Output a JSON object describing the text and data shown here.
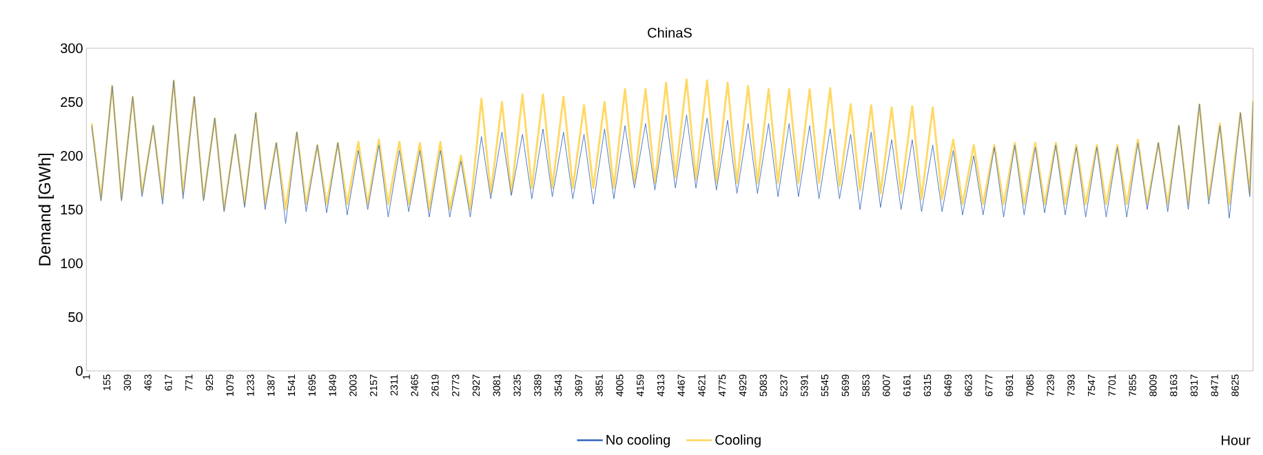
{
  "chart_data": {
    "type": "line",
    "title": "ChinaS",
    "xlabel": "Hour",
    "ylabel": "Demand [GWh]",
    "x": [
      41,
      111,
      195,
      265,
      349,
      419,
      503,
      573,
      657,
      727,
      811,
      881,
      965,
      1035,
      1119,
      1189,
      1273,
      1343,
      1427,
      1497,
      1581,
      1651,
      1735,
      1805,
      1889,
      1959,
      2043,
      2113,
      2197,
      2267,
      2351,
      2421,
      2505,
      2575,
      2659,
      2729,
      2813,
      2883,
      2967,
      3037,
      3121,
      3191,
      3275,
      3345,
      3429,
      3499,
      3583,
      3653,
      3737,
      3807,
      3891,
      3961,
      4045,
      4115,
      4199,
      4269,
      4353,
      4423,
      4507,
      4577,
      4661,
      4731,
      4815,
      4885,
      4969,
      5039,
      5123,
      5193,
      5277,
      5347,
      5431,
      5501,
      5585,
      5655,
      5739,
      5809,
      5893,
      5963,
      6047,
      6117,
      6201,
      6271,
      6355,
      6425,
      6509,
      6579,
      6663,
      6733,
      6817,
      6887,
      6971,
      7041,
      7125,
      7195,
      7279,
      7349,
      7433,
      7503,
      7587,
      7657,
      7741,
      7811,
      7895,
      7965,
      8049,
      8119,
      8203,
      8273,
      8357,
      8427,
      8511,
      8581,
      8665,
      8735,
      8760
    ],
    "series": [
      {
        "name": "No cooling",
        "color": "#4472c4",
        "values": [
          228,
          158,
          265,
          158,
          255,
          162,
          228,
          155,
          270,
          160,
          255,
          158,
          235,
          148,
          220,
          152,
          240,
          150,
          212,
          137,
          222,
          148,
          210,
          147,
          212,
          145,
          205,
          150,
          210,
          143,
          205,
          148,
          205,
          143,
          205,
          143,
          195,
          143,
          218,
          160,
          222,
          163,
          220,
          160,
          225,
          162,
          222,
          160,
          220,
          155,
          225,
          160,
          228,
          170,
          230,
          168,
          238,
          170,
          238,
          170,
          235,
          168,
          233,
          165,
          230,
          165,
          230,
          162,
          230,
          162,
          228,
          160,
          225,
          160,
          220,
          150,
          222,
          152,
          215,
          150,
          215,
          148,
          210,
          148,
          205,
          145,
          200,
          145,
          208,
          143,
          210,
          145,
          208,
          147,
          210,
          145,
          208,
          143,
          208,
          143,
          208,
          143,
          212,
          150,
          212,
          148,
          228,
          150,
          248,
          155,
          228,
          142,
          240,
          162,
          250
        ]
      },
      {
        "name": "Cooling",
        "color": "#ffd966",
        "values": [
          230,
          160,
          265,
          160,
          255,
          165,
          228,
          160,
          270,
          165,
          255,
          160,
          235,
          150,
          220,
          155,
          240,
          155,
          212,
          150,
          222,
          155,
          210,
          155,
          212,
          155,
          213,
          155,
          215,
          155,
          213,
          155,
          212,
          150,
          213,
          150,
          200,
          150,
          253,
          165,
          250,
          165,
          257,
          170,
          257,
          170,
          255,
          170,
          247,
          170,
          250,
          170,
          262,
          175,
          262,
          175,
          268,
          180,
          271,
          178,
          270,
          175,
          268,
          175,
          265,
          175,
          262,
          175,
          262,
          175,
          262,
          175,
          263,
          172,
          248,
          168,
          247,
          165,
          245,
          165,
          246,
          160,
          245,
          160,
          215,
          155,
          210,
          155,
          210,
          155,
          212,
          155,
          212,
          155,
          212,
          155,
          210,
          155,
          210,
          155,
          210,
          155,
          215,
          155,
          212,
          155,
          228,
          155,
          248,
          160,
          230,
          155,
          240,
          165,
          252
        ]
      }
    ],
    "xlim": [
      1,
      8760
    ],
    "xticks": [
      1,
      155,
      309,
      463,
      617,
      771,
      925,
      1079,
      1233,
      1387,
      1541,
      1695,
      1849,
      2003,
      2157,
      2311,
      2465,
      2619,
      2773,
      2927,
      3081,
      3235,
      3389,
      3543,
      3697,
      3851,
      4005,
      4159,
      4313,
      4467,
      4621,
      4775,
      4929,
      5083,
      5237,
      5391,
      5545,
      5699,
      5853,
      6007,
      6161,
      6315,
      6469,
      6623,
      6777,
      6931,
      7085,
      7239,
      7393,
      7547,
      7701,
      7855,
      8009,
      8163,
      8317,
      8471,
      8625
    ],
    "ylim": [
      0,
      300
    ],
    "yticks": [
      0,
      50,
      100,
      150,
      200,
      250,
      300
    ],
    "grid": false,
    "legend": "bottom",
    "marker": "none",
    "line_style": "solid"
  }
}
